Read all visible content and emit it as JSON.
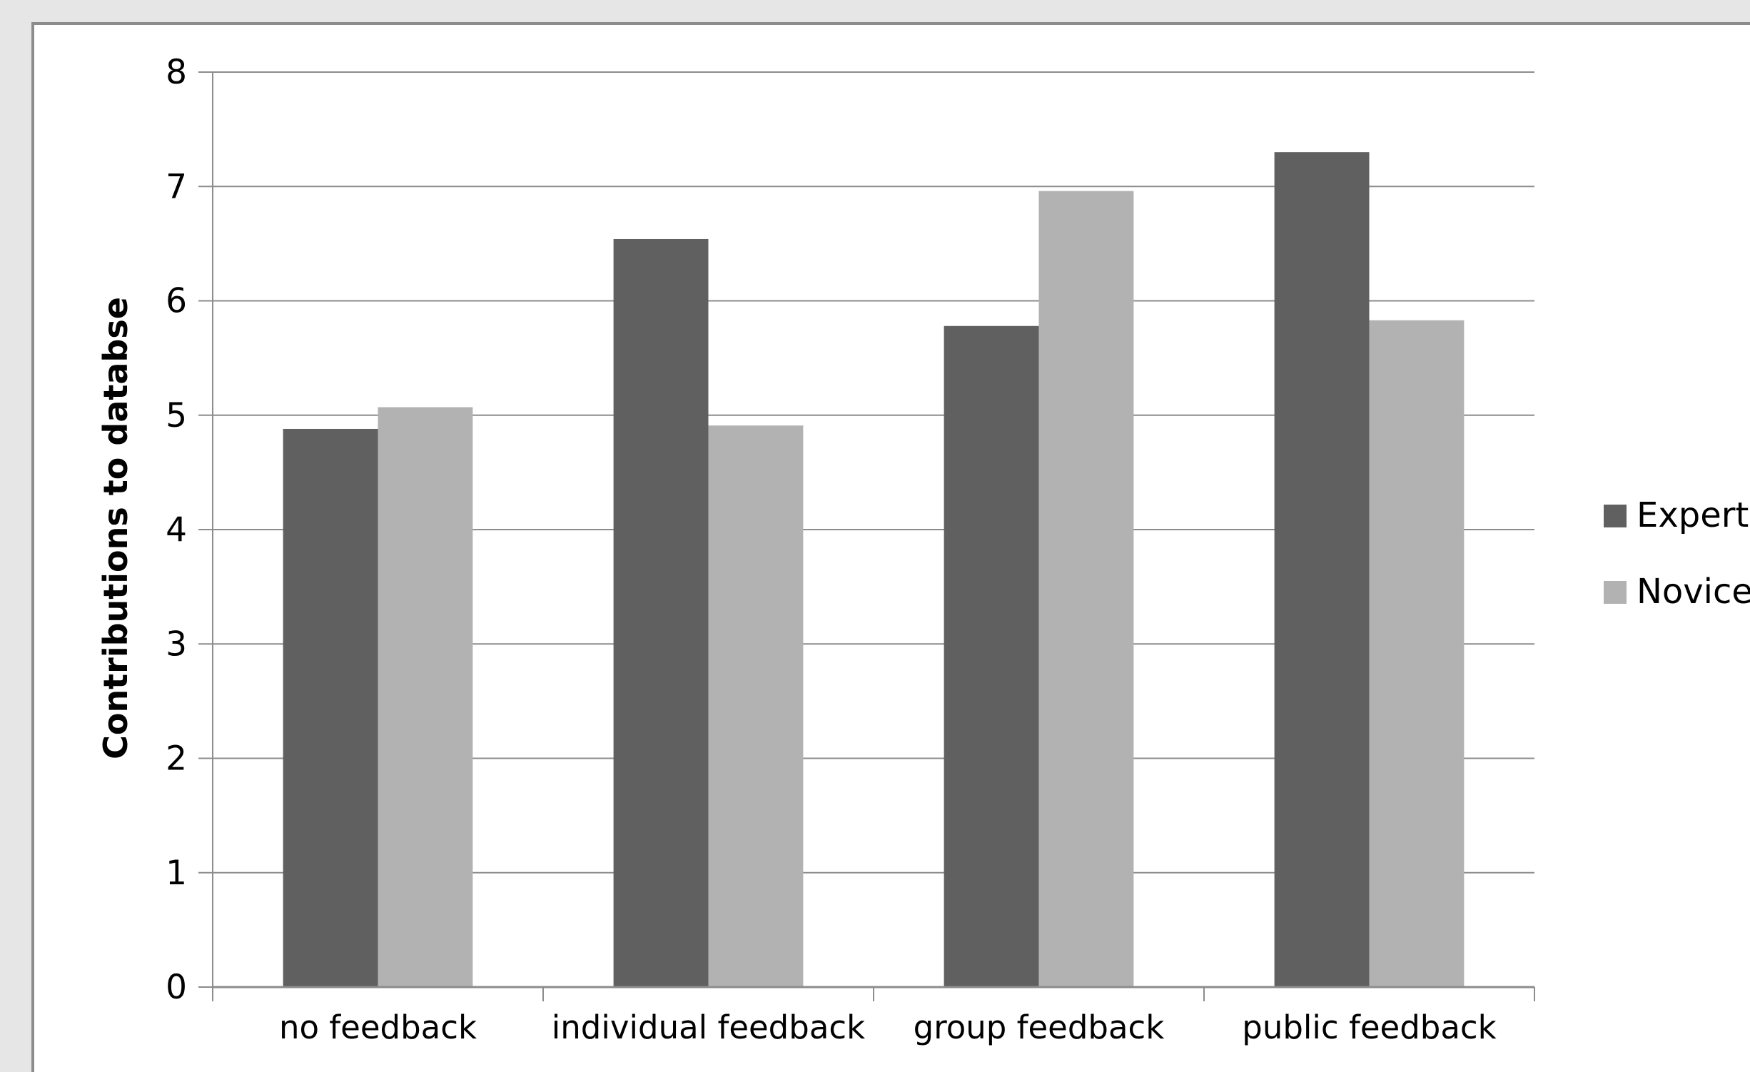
{
  "chart_data": {
    "type": "bar",
    "title": "",
    "xlabel": "",
    "ylabel": "Contributions to databse",
    "ylim": [
      0,
      8
    ],
    "yticks": [
      "0",
      "1",
      "2",
      "3",
      "4",
      "5",
      "6",
      "7",
      "8"
    ],
    "grid": true,
    "legend_position": "right",
    "categories": [
      "no feedback",
      "individual feedback",
      "group feedback",
      "public feedback"
    ],
    "series": [
      {
        "name": "Expert",
        "values": [
          4.88,
          6.54,
          5.78,
          7.3
        ],
        "color": "#606060"
      },
      {
        "name": "Novice",
        "values": [
          5.07,
          4.91,
          6.96,
          5.83
        ],
        "color": "#b2b2b2"
      }
    ]
  },
  "colors": {
    "page_background": "#e6e6e6",
    "plot_background": "#ffffff",
    "frame_border": "#8c8c8c",
    "gridline": "#8c8c8c",
    "axis": "#8c8c8c"
  }
}
